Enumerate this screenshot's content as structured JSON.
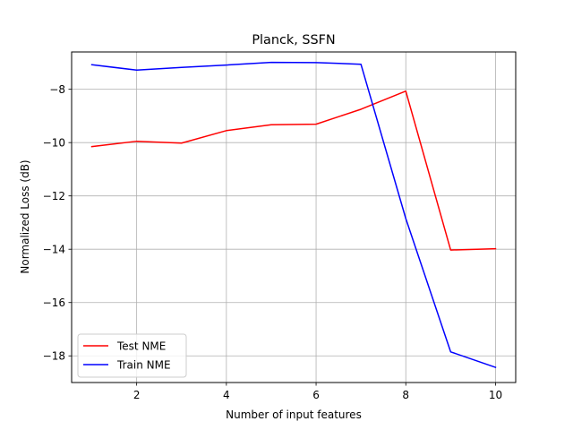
{
  "chart_data": {
    "type": "line",
    "title": "Planck, SSFN",
    "xlabel": "Number of input features",
    "ylabel": "Normalized Loss (dB)",
    "x": [
      1,
      2,
      3,
      4,
      5,
      6,
      7,
      8,
      9,
      10
    ],
    "xlim": [
      0.55,
      10.45
    ],
    "ylim": [
      -19.0,
      -6.6
    ],
    "xticks": [
      2,
      4,
      6,
      8,
      10
    ],
    "yticks": [
      -18,
      -16,
      -14,
      -12,
      -10,
      -8
    ],
    "xtick_labels": [
      "2",
      "4",
      "6",
      "8",
      "10"
    ],
    "ytick_labels": [
      "−18",
      "−16",
      "−14",
      "−12",
      "−10",
      "−8"
    ],
    "grid": true,
    "legend_position": "lower-left",
    "series": [
      {
        "name": "Test NME",
        "color": "#ff0000",
        "values": [
          -10.15,
          -9.95,
          -10.02,
          -9.55,
          -9.33,
          -9.31,
          -8.75,
          -8.07,
          -14.03,
          -13.98
        ]
      },
      {
        "name": "Train NME",
        "color": "#0000ff",
        "values": [
          -7.08,
          -7.28,
          -7.18,
          -7.09,
          -6.99,
          -7.0,
          -7.06,
          -12.85,
          -17.85,
          -18.43
        ]
      }
    ]
  }
}
